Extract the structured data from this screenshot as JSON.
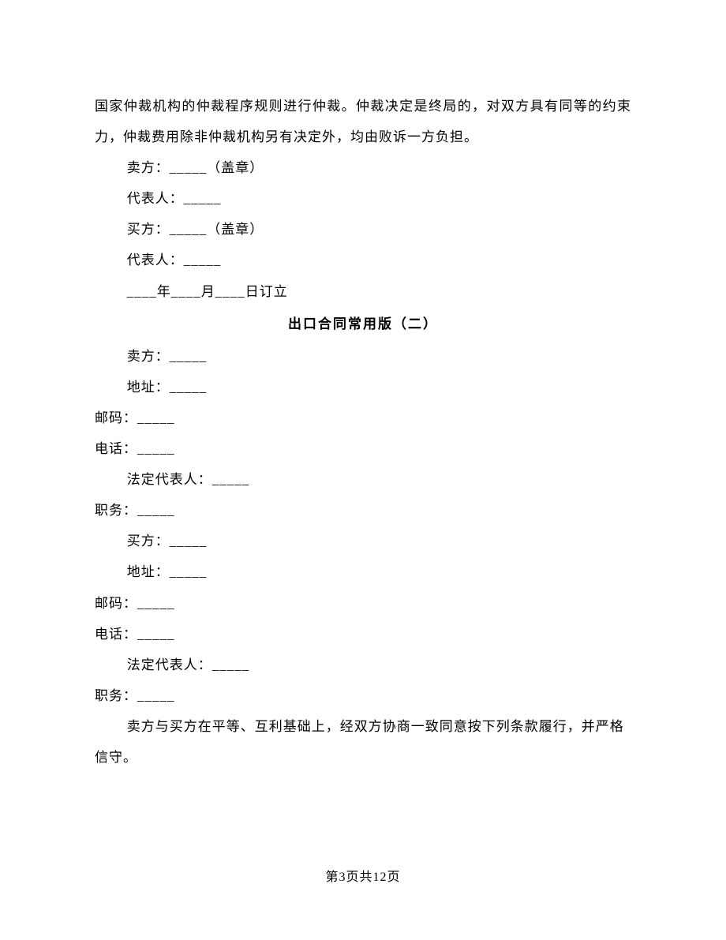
{
  "body": {
    "p1": "国家仲裁机构的仲裁程序规则进行仲裁。仲裁决定是终局的，对双方具有同等的约束力，仲裁费用除非仲裁机构另有决定外，均由败诉一方负担。",
    "seller_seal": "卖方：_____（盖章）",
    "seller_rep": "代表人：_____",
    "buyer_seal": "买方：_____（盖章）",
    "buyer_rep": "代表人：_____",
    "date_line": "____年____月____日订立",
    "section_title": "出口合同常用版（二）",
    "seller2": "卖方：_____",
    "addr1": "地址：_____",
    "postal1": "邮码：_____",
    "phone1": "电话：_____",
    "legal_rep1": "法定代表人：_____",
    "position1": "职务：_____",
    "buyer2": "买方：_____",
    "addr2": "地址：_____",
    "postal2": "邮码：_____",
    "phone2": "电话：_____",
    "legal_rep2": "法定代表人：_____",
    "position2": "职务：_____",
    "closing": "卖方与买方在平等、互利基础上，经双方协商一致同意按下列条款履行，并严格信守。"
  },
  "footer": "第3页共12页"
}
